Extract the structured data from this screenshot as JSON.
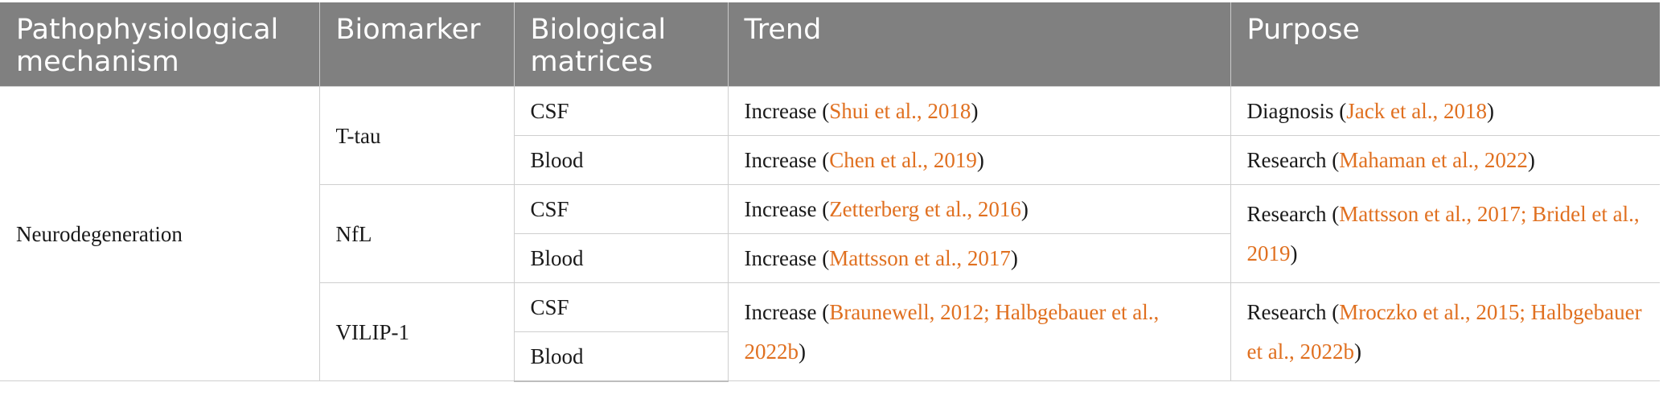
{
  "header": {
    "col1": "Pathophysiological mechanism",
    "col2": "Biomarker",
    "col3": "Biological matrices",
    "col4": "Trend",
    "col5": "Purpose"
  },
  "colors": {
    "header_bg": "#808080",
    "header_text": "#ffffff",
    "reference_link": "#e07020"
  },
  "body": {
    "mechanism": "Neurodegeneration",
    "biomarkers": [
      "T-tau",
      "NfL",
      "VILIP-1"
    ],
    "rows": [
      {
        "matrix": "CSF",
        "trend": {
          "word": "Increase",
          "open": " (",
          "ref": "Shui et al., 2018",
          "close": ")"
        },
        "purpose": {
          "word": "Diagnosis",
          "open": " (",
          "ref": "Jack et al., 2018",
          "close": ")"
        }
      },
      {
        "matrix": "Blood",
        "trend": {
          "word": "Increase",
          "open": " (",
          "ref": "Chen et al., 2019",
          "close": ")"
        },
        "purpose": {
          "word": "Research",
          "open": " (",
          "ref": "Mahaman et al., 2022",
          "close": ")"
        }
      },
      {
        "matrix": "CSF",
        "trend": {
          "word": "Increase",
          "open": " (",
          "ref": "Zetterberg et al., 2016",
          "close": ")"
        },
        "purpose": {
          "word": "Research",
          "open": " (",
          "ref": "Mattsson et al., 2017; Bridel et al., 2019",
          "close": ")"
        }
      },
      {
        "matrix": "Blood",
        "trend": {
          "word": "Increase",
          "open": " (",
          "ref": "Mattsson et al., 2017",
          "close": ")"
        }
      },
      {
        "matrix": "CSF",
        "trend": {
          "word": "Increase",
          "open": " (",
          "ref": "Braunewell, 2012; Halbgebauer et al., 2022b",
          "close": ")"
        },
        "purpose": {
          "word": "Research",
          "open": " (",
          "ref": "Mroczko et al., 2015; Halbgebauer et al., 2022b",
          "close": ")"
        }
      },
      {
        "matrix": "Blood"
      }
    ]
  }
}
